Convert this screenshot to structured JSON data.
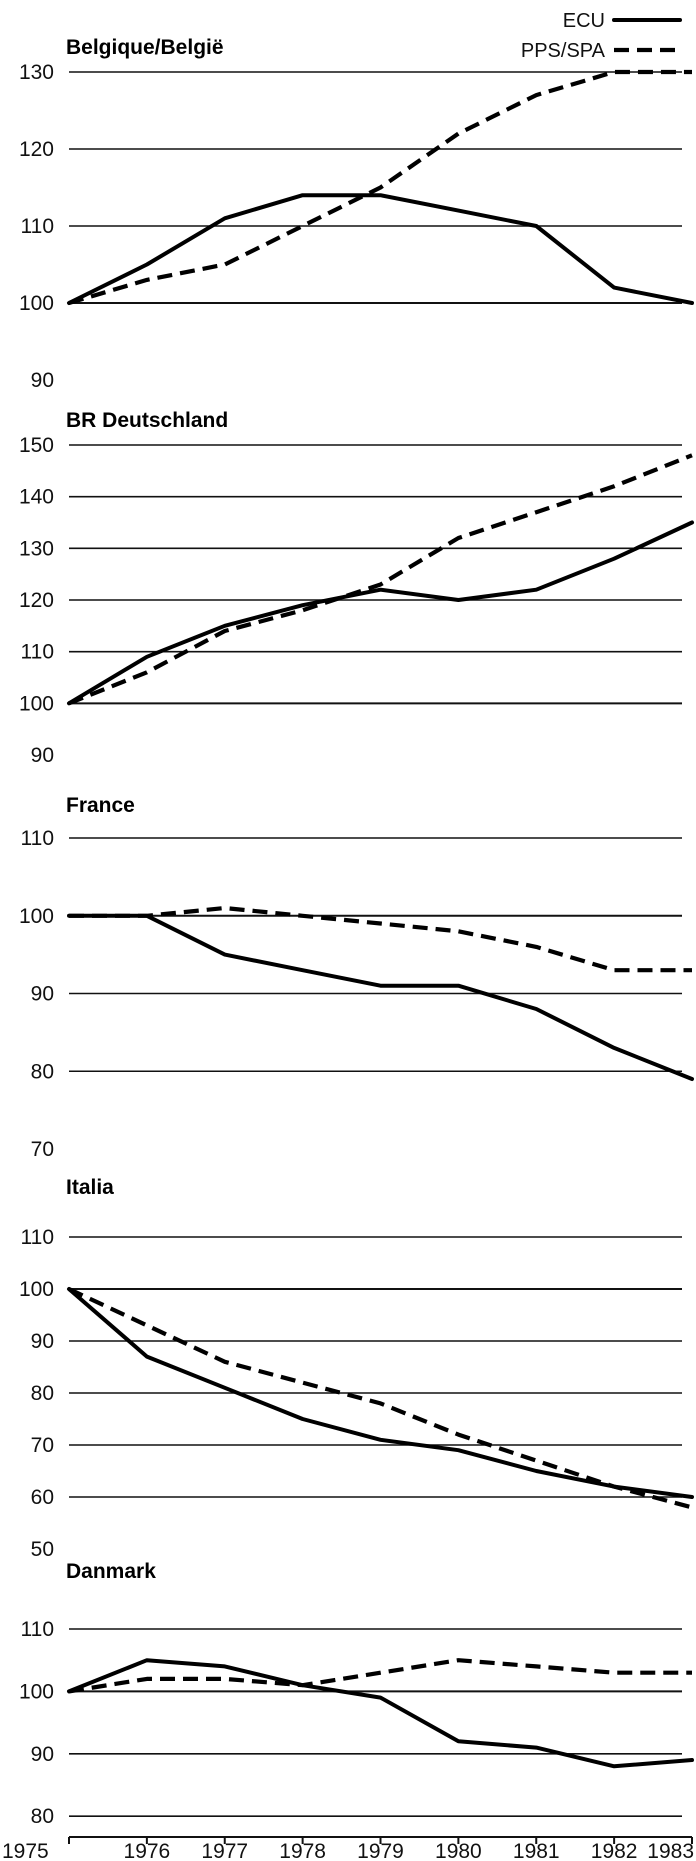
{
  "legend": {
    "placement": "top-right",
    "items": [
      "ECU",
      "PPS/SPA"
    ]
  },
  "colors": {
    "line": "#000000",
    "grid": "#111111",
    "background": "#ffffff"
  },
  "x_axis_labels": [
    "1975",
    "1976",
    "1977",
    "1978",
    "1979",
    "1980",
    "1981",
    "1982",
    "1983"
  ],
  "chart_data": [
    {
      "type": "line",
      "title": "Belgique/België",
      "x": [
        1975,
        1976,
        1977,
        1978,
        1979,
        1980,
        1981,
        1982,
        1983
      ],
      "ylim": [
        90,
        130
      ],
      "yticks": [
        90,
        100,
        110,
        120,
        130
      ],
      "series": [
        {
          "name": "ECU",
          "values": [
            100,
            105,
            111,
            114,
            114,
            112,
            110,
            102,
            100
          ]
        },
        {
          "name": "PPS/SPA",
          "values": [
            100,
            103,
            105,
            110,
            115,
            122,
            127,
            130,
            130
          ]
        }
      ]
    },
    {
      "type": "line",
      "title": "BR Deutschland",
      "x": [
        1975,
        1976,
        1977,
        1978,
        1979,
        1980,
        1981,
        1982,
        1983
      ],
      "ylim": [
        90,
        150
      ],
      "yticks": [
        90,
        100,
        110,
        120,
        130,
        140,
        150
      ],
      "series": [
        {
          "name": "ECU",
          "values": [
            100,
            109,
            115,
            119,
            122,
            120,
            122,
            128,
            135
          ]
        },
        {
          "name": "PPS/SPA",
          "values": [
            100,
            106,
            114,
            118,
            123,
            132,
            137,
            142,
            148
          ]
        }
      ]
    },
    {
      "type": "line",
      "title": "France",
      "x": [
        1975,
        1976,
        1977,
        1978,
        1979,
        1980,
        1981,
        1982,
        1983
      ],
      "ylim": [
        70,
        110
      ],
      "yticks": [
        70,
        80,
        90,
        100,
        110
      ],
      "series": [
        {
          "name": "ECU",
          "values": [
            100,
            100,
            95,
            93,
            91,
            91,
            88,
            83,
            79
          ]
        },
        {
          "name": "PPS/SPA",
          "values": [
            100,
            100,
            101,
            100,
            99,
            98,
            96,
            93,
            93
          ]
        }
      ]
    },
    {
      "type": "line",
      "title": "Italia",
      "x": [
        1975,
        1976,
        1977,
        1978,
        1979,
        1980,
        1981,
        1982,
        1983
      ],
      "ylim": [
        50,
        110
      ],
      "yticks": [
        50,
        60,
        70,
        80,
        90,
        100,
        110
      ],
      "series": [
        {
          "name": "ECU",
          "values": [
            100,
            87,
            81,
            75,
            71,
            69,
            65,
            62,
            60
          ]
        },
        {
          "name": "PPS/SPA",
          "values": [
            100,
            93,
            86,
            82,
            78,
            72,
            67,
            62,
            58
          ]
        }
      ]
    },
    {
      "type": "line",
      "title": "Danmark",
      "x": [
        1975,
        1976,
        1977,
        1978,
        1979,
        1980,
        1981,
        1982,
        1983
      ],
      "ylim": [
        60,
        110
      ],
      "yticks": [
        60,
        70,
        80,
        90,
        100,
        110
      ],
      "series": [
        {
          "name": "ECU",
          "values": [
            100,
            105,
            104,
            101,
            99,
            92,
            91,
            88,
            89
          ]
        },
        {
          "name": "PPS/SPA",
          "values": [
            100,
            102,
            102,
            101,
            103,
            105,
            104,
            103,
            103
          ]
        }
      ]
    }
  ]
}
